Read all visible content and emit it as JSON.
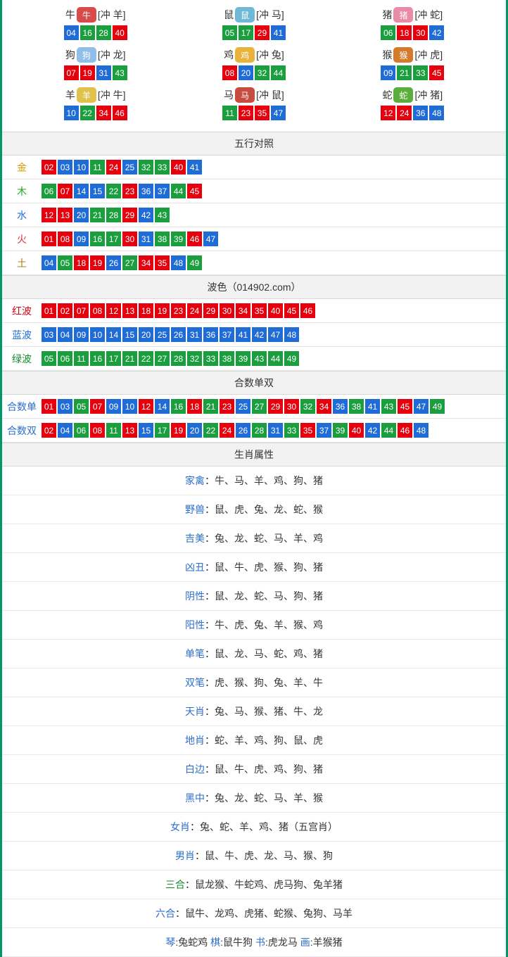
{
  "colors": {
    "red": "#e6000d",
    "blue": "#1f6cd6",
    "green": "#1a9e3e",
    "border": "#009966",
    "headerBg": "#f2f2f2"
  },
  "zodiac": [
    {
      "char": "牛",
      "clash": "[冲 羊]",
      "iconChar": "牛",
      "iconColor": "#d94b4b",
      "nums": [
        {
          "n": "04",
          "c": "blue"
        },
        {
          "n": "16",
          "c": "green"
        },
        {
          "n": "28",
          "c": "green"
        },
        {
          "n": "40",
          "c": "red"
        }
      ]
    },
    {
      "char": "鼠",
      "clash": "[冲 马]",
      "iconChar": "鼠",
      "iconColor": "#6fb8d6",
      "nums": [
        {
          "n": "05",
          "c": "green"
        },
        {
          "n": "17",
          "c": "green"
        },
        {
          "n": "29",
          "c": "red"
        },
        {
          "n": "41",
          "c": "blue"
        }
      ]
    },
    {
      "char": "猪",
      "clash": "[冲 蛇]",
      "iconChar": "猪",
      "iconColor": "#e98aa6",
      "nums": [
        {
          "n": "06",
          "c": "green"
        },
        {
          "n": "18",
          "c": "red"
        },
        {
          "n": "30",
          "c": "red"
        },
        {
          "n": "42",
          "c": "blue"
        }
      ]
    },
    {
      "char": "狗",
      "clash": "[冲 龙]",
      "iconChar": "狗",
      "iconColor": "#8fbfe8",
      "nums": [
        {
          "n": "07",
          "c": "red"
        },
        {
          "n": "19",
          "c": "red"
        },
        {
          "n": "31",
          "c": "blue"
        },
        {
          "n": "43",
          "c": "green"
        }
      ]
    },
    {
      "char": "鸡",
      "clash": "[冲 兔]",
      "iconChar": "鸡",
      "iconColor": "#e8b23b",
      "nums": [
        {
          "n": "08",
          "c": "red"
        },
        {
          "n": "20",
          "c": "blue"
        },
        {
          "n": "32",
          "c": "green"
        },
        {
          "n": "44",
          "c": "green"
        }
      ]
    },
    {
      "char": "猴",
      "clash": "[冲 虎]",
      "iconChar": "猴",
      "iconColor": "#d47a2b",
      "nums": [
        {
          "n": "09",
          "c": "blue"
        },
        {
          "n": "21",
          "c": "green"
        },
        {
          "n": "33",
          "c": "green"
        },
        {
          "n": "45",
          "c": "red"
        }
      ]
    },
    {
      "char": "羊",
      "clash": "[冲 牛]",
      "iconChar": "羊",
      "iconColor": "#e0c24a",
      "nums": [
        {
          "n": "10",
          "c": "blue"
        },
        {
          "n": "22",
          "c": "green"
        },
        {
          "n": "34",
          "c": "red"
        },
        {
          "n": "46",
          "c": "red"
        }
      ]
    },
    {
      "char": "马",
      "clash": "[冲 鼠]",
      "iconChar": "马",
      "iconColor": "#c84b3f",
      "nums": [
        {
          "n": "11",
          "c": "green"
        },
        {
          "n": "23",
          "c": "red"
        },
        {
          "n": "35",
          "c": "red"
        },
        {
          "n": "47",
          "c": "blue"
        }
      ]
    },
    {
      "char": "蛇",
      "clash": "[冲 猪]",
      "iconChar": "蛇",
      "iconColor": "#5aae3b",
      "nums": [
        {
          "n": "12",
          "c": "red"
        },
        {
          "n": "24",
          "c": "red"
        },
        {
          "n": "36",
          "c": "blue"
        },
        {
          "n": "48",
          "c": "blue"
        }
      ]
    }
  ],
  "sections": [
    {
      "title": "五行对照",
      "rows": [
        {
          "label": "金",
          "labelClass": "lab-gold",
          "nums": [
            {
              "n": "02",
              "c": "red"
            },
            {
              "n": "03",
              "c": "blue"
            },
            {
              "n": "10",
              "c": "blue"
            },
            {
              "n": "11",
              "c": "green"
            },
            {
              "n": "24",
              "c": "red"
            },
            {
              "n": "25",
              "c": "blue"
            },
            {
              "n": "32",
              "c": "green"
            },
            {
              "n": "33",
              "c": "green"
            },
            {
              "n": "40",
              "c": "red"
            },
            {
              "n": "41",
              "c": "blue"
            }
          ]
        },
        {
          "label": "木",
          "labelClass": "lab-wood",
          "nums": [
            {
              "n": "06",
              "c": "green"
            },
            {
              "n": "07",
              "c": "red"
            },
            {
              "n": "14",
              "c": "blue"
            },
            {
              "n": "15",
              "c": "blue"
            },
            {
              "n": "22",
              "c": "green"
            },
            {
              "n": "23",
              "c": "red"
            },
            {
              "n": "36",
              "c": "blue"
            },
            {
              "n": "37",
              "c": "blue"
            },
            {
              "n": "44",
              "c": "green"
            },
            {
              "n": "45",
              "c": "red"
            }
          ]
        },
        {
          "label": "水",
          "labelClass": "lab-water",
          "nums": [
            {
              "n": "12",
              "c": "red"
            },
            {
              "n": "13",
              "c": "red"
            },
            {
              "n": "20",
              "c": "blue"
            },
            {
              "n": "21",
              "c": "green"
            },
            {
              "n": "28",
              "c": "green"
            },
            {
              "n": "29",
              "c": "red"
            },
            {
              "n": "42",
              "c": "blue"
            },
            {
              "n": "43",
              "c": "green"
            }
          ]
        },
        {
          "label": "火",
          "labelClass": "lab-fire",
          "nums": [
            {
              "n": "01",
              "c": "red"
            },
            {
              "n": "08",
              "c": "red"
            },
            {
              "n": "09",
              "c": "blue"
            },
            {
              "n": "16",
              "c": "green"
            },
            {
              "n": "17",
              "c": "green"
            },
            {
              "n": "30",
              "c": "red"
            },
            {
              "n": "31",
              "c": "blue"
            },
            {
              "n": "38",
              "c": "green"
            },
            {
              "n": "39",
              "c": "green"
            },
            {
              "n": "46",
              "c": "red"
            },
            {
              "n": "47",
              "c": "blue"
            }
          ]
        },
        {
          "label": "土",
          "labelClass": "lab-earth",
          "nums": [
            {
              "n": "04",
              "c": "blue"
            },
            {
              "n": "05",
              "c": "green"
            },
            {
              "n": "18",
              "c": "red"
            },
            {
              "n": "19",
              "c": "red"
            },
            {
              "n": "26",
              "c": "blue"
            },
            {
              "n": "27",
              "c": "green"
            },
            {
              "n": "34",
              "c": "red"
            },
            {
              "n": "35",
              "c": "red"
            },
            {
              "n": "48",
              "c": "blue"
            },
            {
              "n": "49",
              "c": "green"
            }
          ]
        }
      ]
    },
    {
      "title": "波色（014902.com）",
      "rows": [
        {
          "label": "红波",
          "labelClass": "lab-red",
          "nums": [
            {
              "n": "01",
              "c": "red"
            },
            {
              "n": "02",
              "c": "red"
            },
            {
              "n": "07",
              "c": "red"
            },
            {
              "n": "08",
              "c": "red"
            },
            {
              "n": "12",
              "c": "red"
            },
            {
              "n": "13",
              "c": "red"
            },
            {
              "n": "18",
              "c": "red"
            },
            {
              "n": "19",
              "c": "red"
            },
            {
              "n": "23",
              "c": "red"
            },
            {
              "n": "24",
              "c": "red"
            },
            {
              "n": "29",
              "c": "red"
            },
            {
              "n": "30",
              "c": "red"
            },
            {
              "n": "34",
              "c": "red"
            },
            {
              "n": "35",
              "c": "red"
            },
            {
              "n": "40",
              "c": "red"
            },
            {
              "n": "45",
              "c": "red"
            },
            {
              "n": "46",
              "c": "red"
            }
          ]
        },
        {
          "label": "蓝波",
          "labelClass": "lab-blue",
          "nums": [
            {
              "n": "03",
              "c": "blue"
            },
            {
              "n": "04",
              "c": "blue"
            },
            {
              "n": "09",
              "c": "blue"
            },
            {
              "n": "10",
              "c": "blue"
            },
            {
              "n": "14",
              "c": "blue"
            },
            {
              "n": "15",
              "c": "blue"
            },
            {
              "n": "20",
              "c": "blue"
            },
            {
              "n": "25",
              "c": "blue"
            },
            {
              "n": "26",
              "c": "blue"
            },
            {
              "n": "31",
              "c": "blue"
            },
            {
              "n": "36",
              "c": "blue"
            },
            {
              "n": "37",
              "c": "blue"
            },
            {
              "n": "41",
              "c": "blue"
            },
            {
              "n": "42",
              "c": "blue"
            },
            {
              "n": "47",
              "c": "blue"
            },
            {
              "n": "48",
              "c": "blue"
            }
          ]
        },
        {
          "label": "绿波",
          "labelClass": "lab-green",
          "nums": [
            {
              "n": "05",
              "c": "green"
            },
            {
              "n": "06",
              "c": "green"
            },
            {
              "n": "11",
              "c": "green"
            },
            {
              "n": "16",
              "c": "green"
            },
            {
              "n": "17",
              "c": "green"
            },
            {
              "n": "21",
              "c": "green"
            },
            {
              "n": "22",
              "c": "green"
            },
            {
              "n": "27",
              "c": "green"
            },
            {
              "n": "28",
              "c": "green"
            },
            {
              "n": "32",
              "c": "green"
            },
            {
              "n": "33",
              "c": "green"
            },
            {
              "n": "38",
              "c": "green"
            },
            {
              "n": "39",
              "c": "green"
            },
            {
              "n": "43",
              "c": "green"
            },
            {
              "n": "44",
              "c": "green"
            },
            {
              "n": "49",
              "c": "green"
            }
          ]
        }
      ]
    },
    {
      "title": "合数单双",
      "rows": [
        {
          "label": "合数单",
          "labelClass": "lab-blue2",
          "nums": [
            {
              "n": "01",
              "c": "red"
            },
            {
              "n": "03",
              "c": "blue"
            },
            {
              "n": "05",
              "c": "green"
            },
            {
              "n": "07",
              "c": "red"
            },
            {
              "n": "09",
              "c": "blue"
            },
            {
              "n": "10",
              "c": "blue"
            },
            {
              "n": "12",
              "c": "red"
            },
            {
              "n": "14",
              "c": "blue"
            },
            {
              "n": "16",
              "c": "green"
            },
            {
              "n": "18",
              "c": "red"
            },
            {
              "n": "21",
              "c": "green"
            },
            {
              "n": "23",
              "c": "red"
            },
            {
              "n": "25",
              "c": "blue"
            },
            {
              "n": "27",
              "c": "green"
            },
            {
              "n": "29",
              "c": "red"
            },
            {
              "n": "30",
              "c": "red"
            },
            {
              "n": "32",
              "c": "green"
            },
            {
              "n": "34",
              "c": "red"
            },
            {
              "n": "36",
              "c": "blue"
            },
            {
              "n": "38",
              "c": "green"
            },
            {
              "n": "41",
              "c": "blue"
            },
            {
              "n": "43",
              "c": "green"
            },
            {
              "n": "45",
              "c": "red"
            },
            {
              "n": "47",
              "c": "blue"
            },
            {
              "n": "49",
              "c": "green"
            }
          ]
        },
        {
          "label": "合数双",
          "labelClass": "lab-blue2",
          "nums": [
            {
              "n": "02",
              "c": "red"
            },
            {
              "n": "04",
              "c": "blue"
            },
            {
              "n": "06",
              "c": "green"
            },
            {
              "n": "08",
              "c": "red"
            },
            {
              "n": "11",
              "c": "green"
            },
            {
              "n": "13",
              "c": "red"
            },
            {
              "n": "15",
              "c": "blue"
            },
            {
              "n": "17",
              "c": "green"
            },
            {
              "n": "19",
              "c": "red"
            },
            {
              "n": "20",
              "c": "blue"
            },
            {
              "n": "22",
              "c": "green"
            },
            {
              "n": "24",
              "c": "red"
            },
            {
              "n": "26",
              "c": "blue"
            },
            {
              "n": "28",
              "c": "green"
            },
            {
              "n": "31",
              "c": "blue"
            },
            {
              "n": "33",
              "c": "green"
            },
            {
              "n": "35",
              "c": "red"
            },
            {
              "n": "37",
              "c": "blue"
            },
            {
              "n": "39",
              "c": "green"
            },
            {
              "n": "40",
              "c": "red"
            },
            {
              "n": "42",
              "c": "blue"
            },
            {
              "n": "44",
              "c": "green"
            },
            {
              "n": "46",
              "c": "red"
            },
            {
              "n": "48",
              "c": "blue"
            }
          ]
        }
      ]
    }
  ],
  "attributes": {
    "title": "生肖属性",
    "rows": [
      {
        "label": "家禽",
        "value": "：牛、马、羊、鸡、狗、猪",
        "labelClass": ""
      },
      {
        "label": "野兽",
        "value": "：鼠、虎、兔、龙、蛇、猴",
        "labelClass": ""
      },
      {
        "label": "吉美",
        "value": "：兔、龙、蛇、马、羊、鸡",
        "labelClass": ""
      },
      {
        "label": "凶丑",
        "value": "：鼠、牛、虎、猴、狗、猪",
        "labelClass": ""
      },
      {
        "label": "阴性",
        "value": "：鼠、龙、蛇、马、狗、猪",
        "labelClass": ""
      },
      {
        "label": "阳性",
        "value": "：牛、虎、兔、羊、猴、鸡",
        "labelClass": ""
      },
      {
        "label": "单笔",
        "value": "：鼠、龙、马、蛇、鸡、猪",
        "labelClass": ""
      },
      {
        "label": "双笔",
        "value": "：虎、猴、狗、兔、羊、牛",
        "labelClass": ""
      },
      {
        "label": "天肖",
        "value": "：兔、马、猴、猪、牛、龙",
        "labelClass": ""
      },
      {
        "label": "地肖",
        "value": "：蛇、羊、鸡、狗、鼠、虎",
        "labelClass": ""
      },
      {
        "label": "白边",
        "value": "：鼠、牛、虎、鸡、狗、猪",
        "labelClass": ""
      },
      {
        "label": "黑中",
        "value": "：兔、龙、蛇、马、羊、猴",
        "labelClass": ""
      },
      {
        "label": "女肖",
        "value": "：兔、蛇、羊、鸡、猪（五宫肖）",
        "labelClass": ""
      },
      {
        "label": "男肖",
        "value": "：鼠、牛、虎、龙、马、猴、狗",
        "labelClass": ""
      },
      {
        "label": "三合",
        "value": "：鼠龙猴、牛蛇鸡、虎马狗、兔羊猪",
        "labelClass": "green"
      },
      {
        "label": "六合",
        "value": "：鼠牛、龙鸡、虎猪、蛇猴、兔狗、马羊",
        "labelClass": ""
      },
      {
        "label": "琴",
        "value": ":兔蛇鸡  棋:鼠牛狗  书:虎龙马  画:羊猴猪",
        "labelClass": "red",
        "multi": true
      }
    ]
  }
}
